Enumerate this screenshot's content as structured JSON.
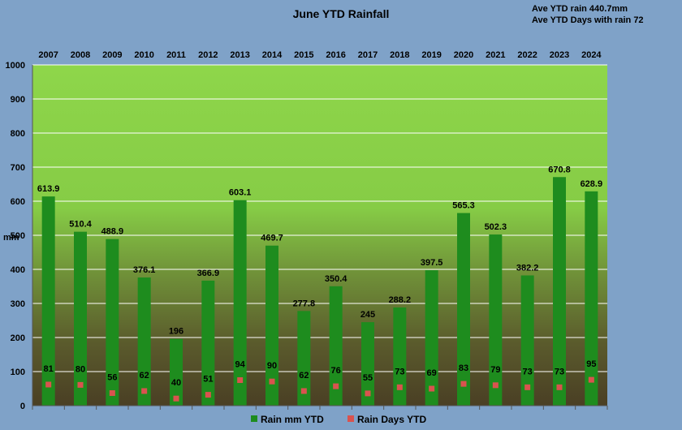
{
  "chart_data": {
    "type": "bar",
    "title": "June YTD Rainfall",
    "annotations": [
      "Ave YTD rain 440.7mm",
      "Ave YTD  Days with rain 72"
    ],
    "ylabel": "mm",
    "ylim": [
      0,
      1000
    ],
    "yticks": [
      0,
      100,
      200,
      300,
      400,
      500,
      600,
      700,
      800,
      900,
      1000
    ],
    "categories": [
      "2007",
      "2008",
      "2009",
      "2010",
      "2011",
      "2012",
      "2013",
      "2014",
      "2015",
      "2016",
      "2017",
      "2018",
      "2019",
      "2020",
      "2021",
      "2022",
      "2023",
      "2024"
    ],
    "series": [
      {
        "name": "Rain mm YTD",
        "kind": "bar",
        "color": "#1e8c1e",
        "values": [
          613.9,
          510.4,
          488.9,
          376.1,
          196,
          366.9,
          603.1,
          469.7,
          277.8,
          350.4,
          245,
          288.2,
          397.5,
          565.3,
          502.3,
          382.2,
          670.8,
          628.9
        ]
      },
      {
        "name": "Rain Days YTD",
        "kind": "marker",
        "color": "#d9534f",
        "values": [
          81,
          80,
          56,
          62,
          40,
          51,
          94,
          90,
          62,
          76,
          55,
          73,
          69,
          83,
          79,
          73,
          73,
          95
        ]
      }
    ],
    "grid": true,
    "legend_position": "bottom"
  }
}
